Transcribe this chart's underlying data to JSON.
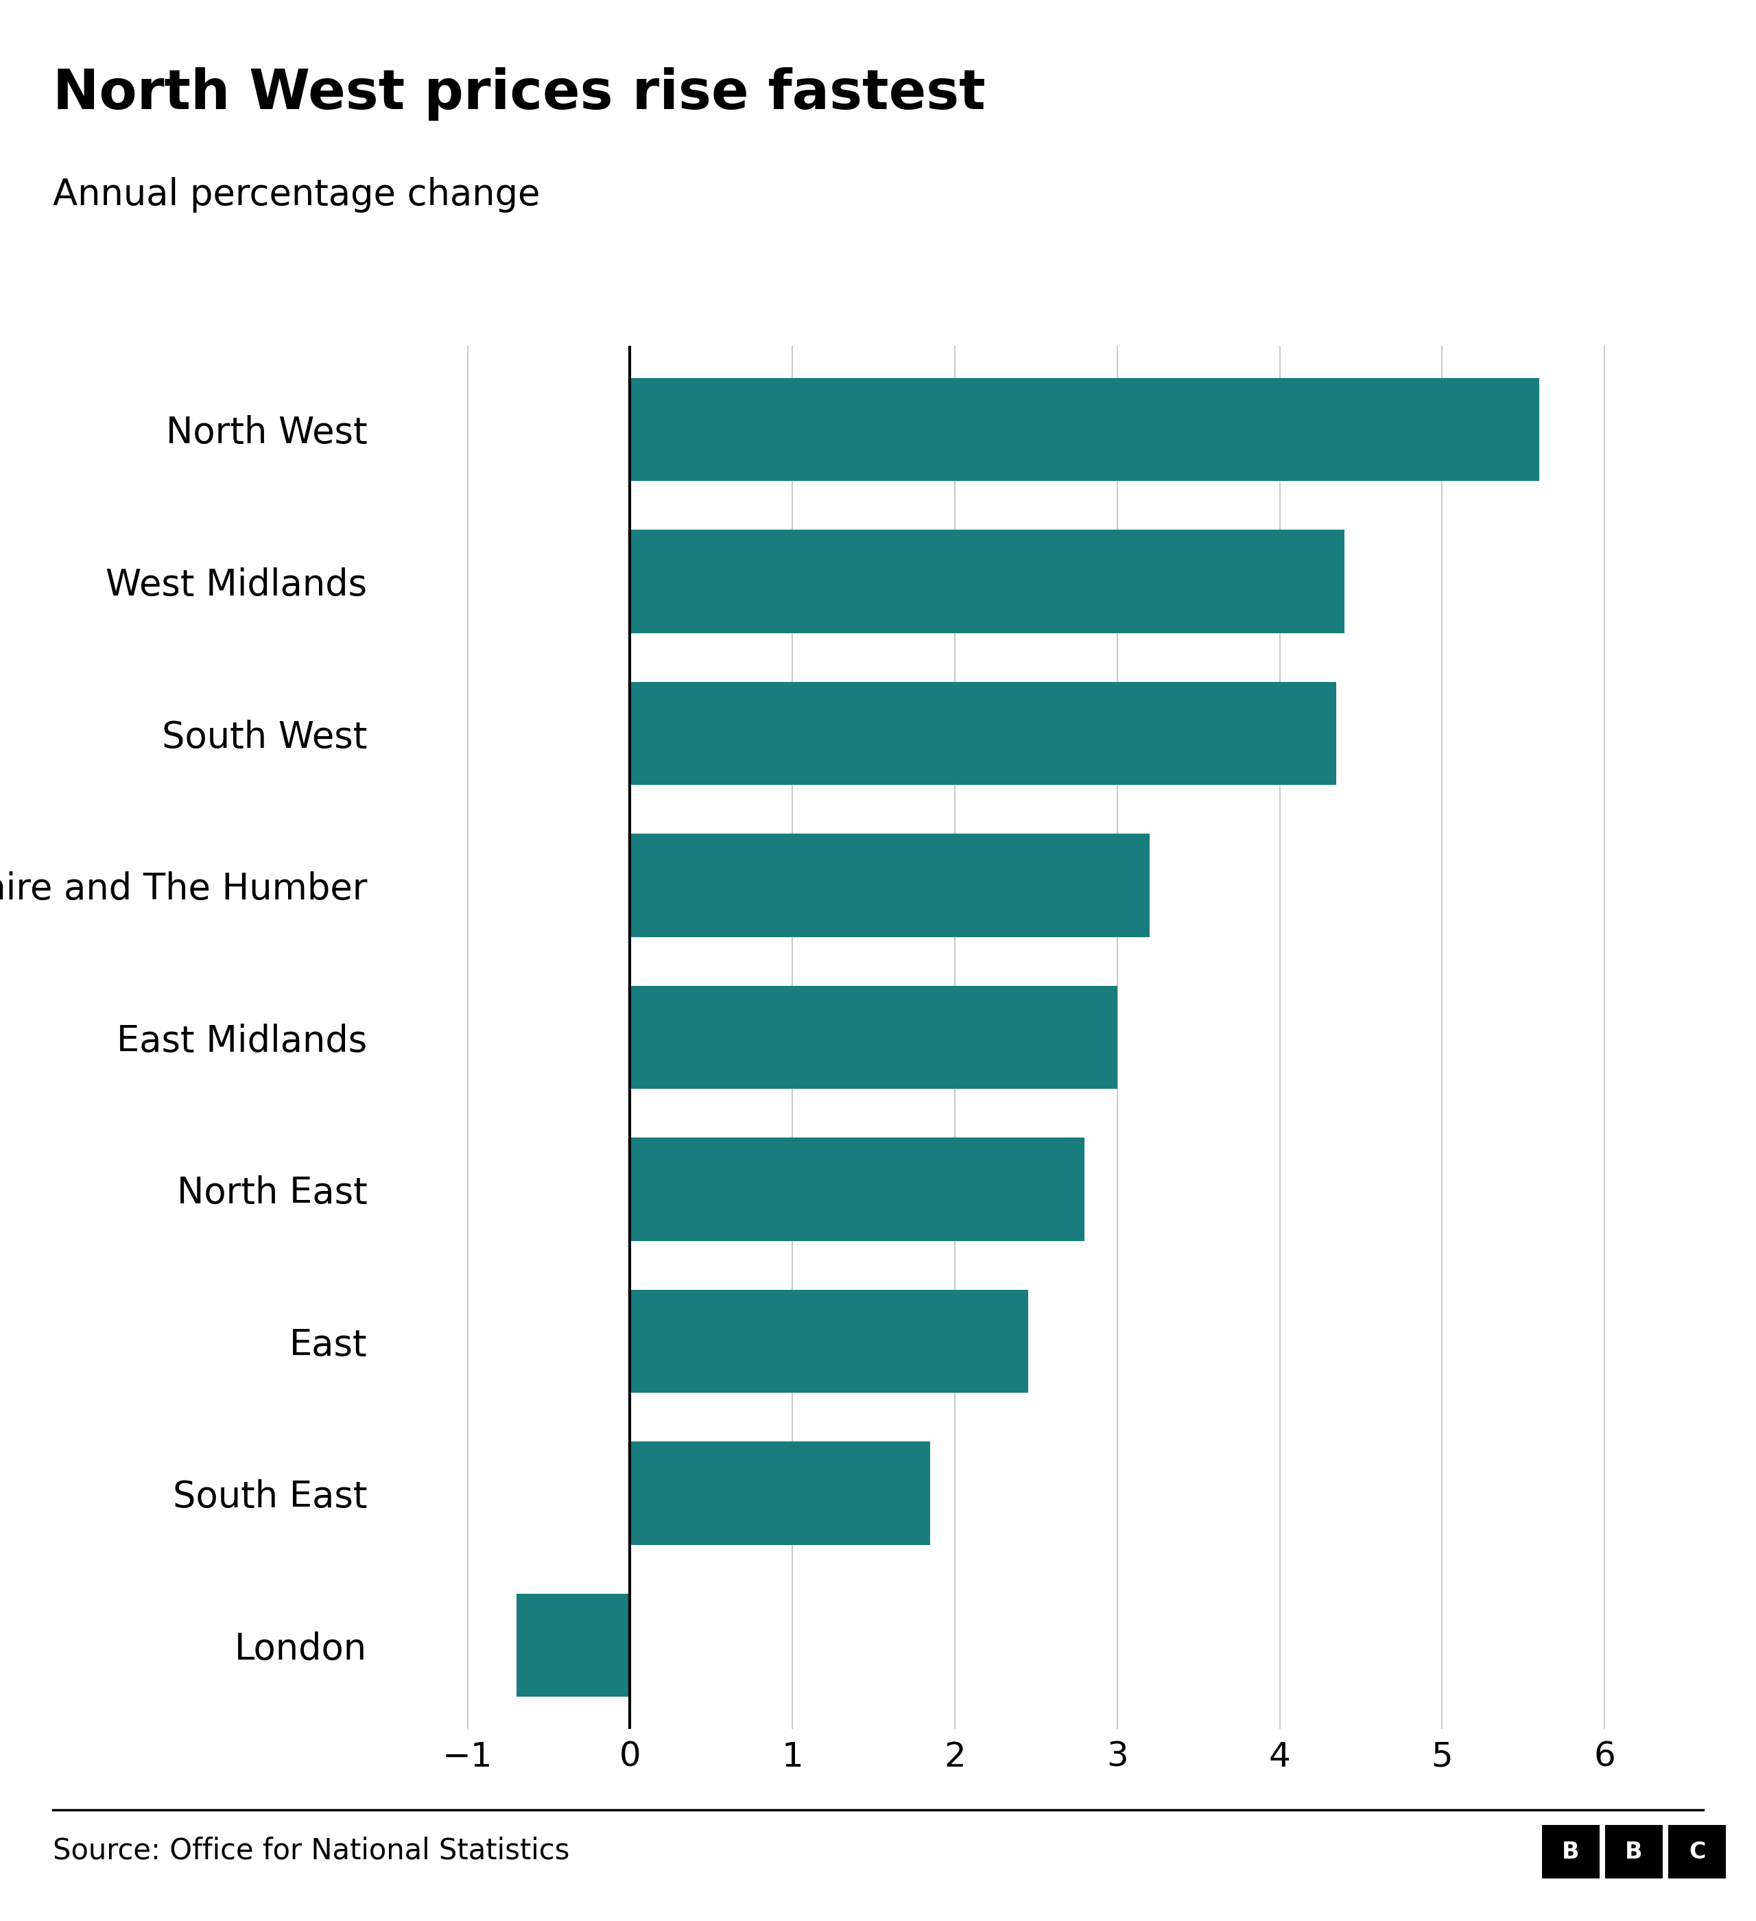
{
  "title": "North West prices rise fastest",
  "subtitle": "Annual percentage change",
  "source": "Source: Office for National Statistics",
  "categories": [
    "North West",
    "West Midlands",
    "South West",
    "Yorkshire and The Humber",
    "East Midlands",
    "North East",
    "East",
    "South East",
    "London"
  ],
  "values": [
    5.6,
    4.4,
    4.35,
    3.2,
    3.0,
    2.8,
    2.45,
    1.85,
    -0.7
  ],
  "bar_color": "#1a7d7d",
  "background_color": "#ffffff",
  "xlim": [
    -1.5,
    6.5
  ],
  "xticks": [
    -1,
    0,
    1,
    2,
    3,
    4,
    5,
    6
  ],
  "title_fontsize": 58,
  "subtitle_fontsize": 38,
  "tick_fontsize": 36,
  "label_fontsize": 38,
  "source_fontsize": 30
}
